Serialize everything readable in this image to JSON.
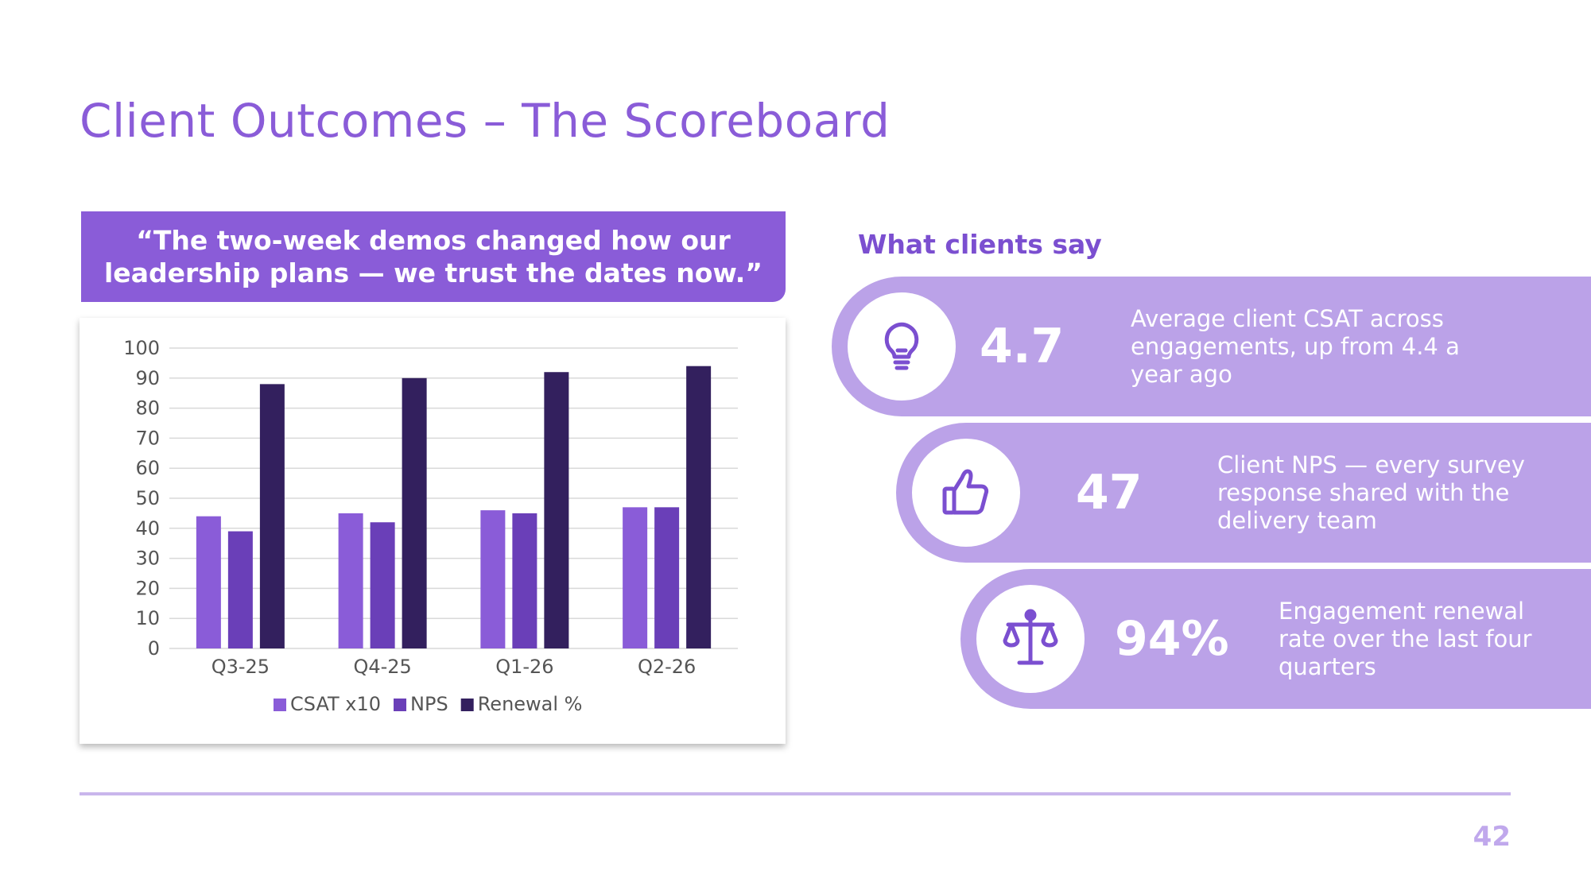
{
  "slide": {
    "title": "Client Outcomes – The Scoreboard",
    "quote": "“The two-week demos changed how our leadership plans — we trust the dates now.”",
    "page_number": "42"
  },
  "testimonials": {
    "heading": "What clients say",
    "items": [
      {
        "icon": "lightbulb-icon",
        "value": "4.7",
        "description": "Average client CSAT across engagements, up from 4.4 a year ago"
      },
      {
        "icon": "thumbs-up-icon",
        "value": "47",
        "description": "Client NPS — every survey response shared with the delivery team"
      },
      {
        "icon": "scale-icon",
        "value": "94%",
        "description": "Engagement renewal rate over the last four quarters"
      }
    ]
  },
  "colors": {
    "accent": "#8a5cd8",
    "pill": "#bba2e8",
    "icon": "#7b4fd0"
  },
  "chart_data": {
    "type": "bar",
    "categories": [
      "Q3-25",
      "Q4-25",
      "Q1-26",
      "Q2-26"
    ],
    "series": [
      {
        "name": "CSAT x10",
        "values": [
          44,
          45,
          46,
          47
        ],
        "color": "#8a5cd8"
      },
      {
        "name": "NPS",
        "values": [
          39,
          42,
          45,
          47
        ],
        "color": "#6a3fb8"
      },
      {
        "name": "Renewal %",
        "values": [
          88,
          90,
          92,
          94
        ],
        "color": "#33205e"
      }
    ],
    "yticks": [
      "0",
      "10",
      "20",
      "30",
      "40",
      "50",
      "60",
      "70",
      "80",
      "90",
      "100"
    ],
    "ylim": [
      0,
      100
    ],
    "grid": true,
    "legend": "bottom"
  }
}
